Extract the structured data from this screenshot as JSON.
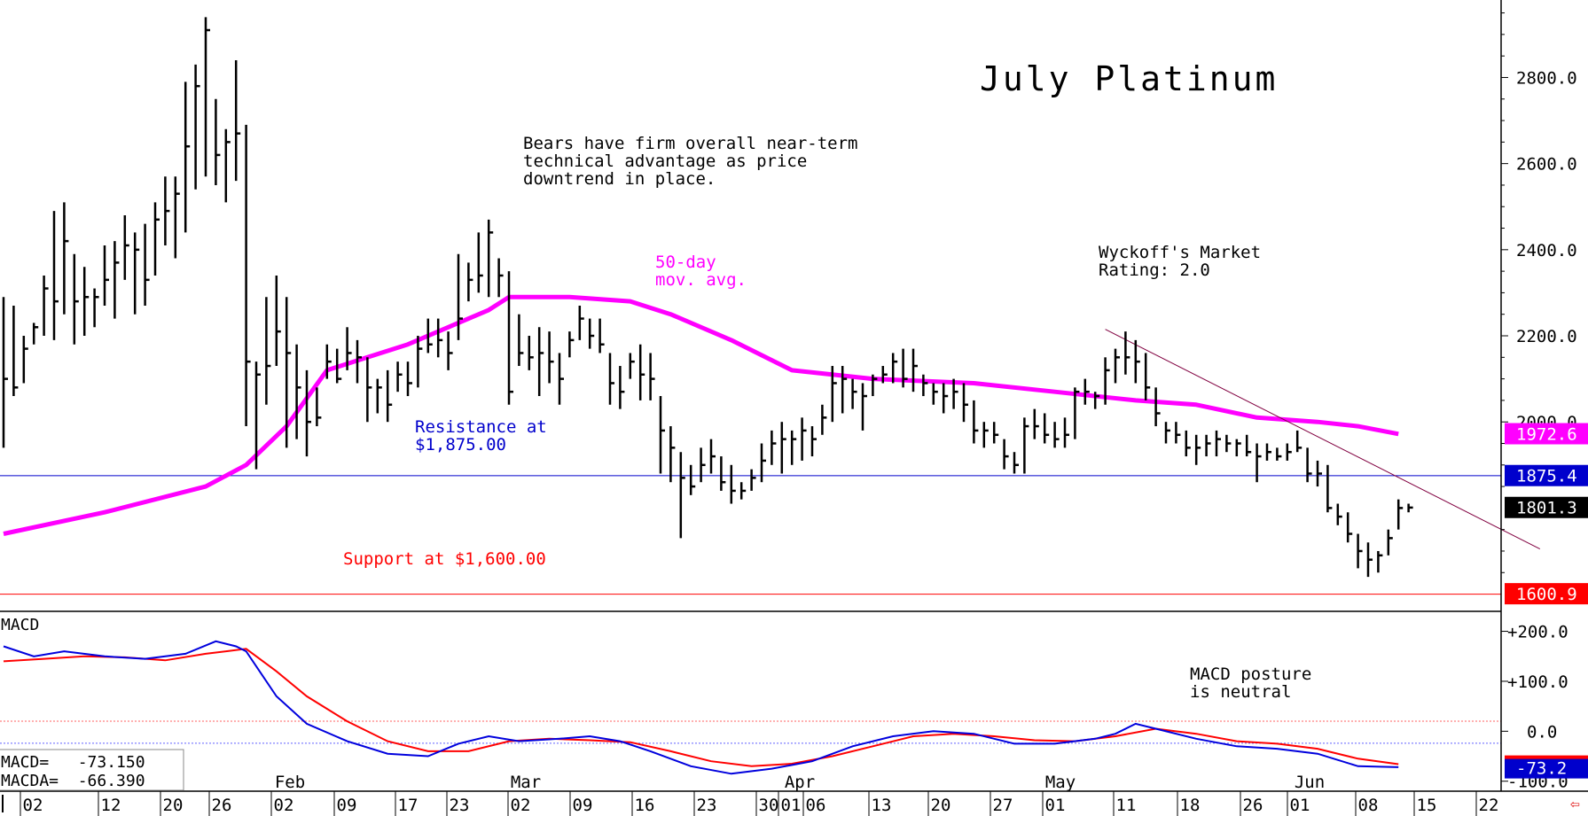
{
  "chart_data": {
    "type": "ohlc",
    "title": "July Platinum",
    "annotations": {
      "commentary": [
        "Bears have firm overall near-term",
        "technical advantage as price",
        "downtrend in place."
      ],
      "ma_label": [
        "50-day",
        "mov. avg."
      ],
      "rating": [
        "Wyckoff's Market",
        "Rating: 2.0"
      ],
      "resistance": [
        "Resistance at",
        "$1,875.00"
      ],
      "support": "Support at $1,600.00",
      "macd_posture": [
        "MACD posture",
        "is neutral"
      ],
      "macd_title": "MACD",
      "macd_value": "MACD=   -73.150",
      "macda_value": "MACDA=  -66.390"
    },
    "price_axis": {
      "min": 1560,
      "max": 2980,
      "ticks": [
        "2800.0",
        "2600.0",
        "2400.0",
        "2200.0",
        "2000.0"
      ],
      "tick_values": [
        2800,
        2600,
        2400,
        2200,
        2000
      ]
    },
    "price_tags": [
      {
        "label": "1972.6",
        "value": 1972.6,
        "color": "#ff00ff"
      },
      {
        "label": "1875.4",
        "value": 1875.4,
        "color": "#0000cc"
      },
      {
        "label": "1801.3",
        "value": 1801.3,
        "color": "#000000"
      },
      {
        "label": "1600.9",
        "value": 1600.9,
        "color": "#ff0000"
      }
    ],
    "levels": {
      "resistance": 1875.0,
      "support": 1600.0
    },
    "macd_axis": {
      "min": -120,
      "max": 240,
      "ticks": [
        "+200.0",
        "+100.0",
        "0.0",
        "-100.0"
      ],
      "tick_values": [
        200,
        100,
        0,
        -100
      ],
      "tag": "-73.2"
    },
    "x_axis": {
      "day_labels": [
        "02",
        "12",
        "20",
        "26",
        "02",
        "09",
        "17",
        "23",
        "02",
        "09",
        "16",
        "23",
        "30",
        "01",
        "06",
        "13",
        "20",
        "27",
        "01",
        "11",
        "18",
        "26",
        "01",
        "08",
        "15",
        "22"
      ],
      "month_labels": [
        "Feb",
        "Mar",
        "Apr",
        "May",
        "Jun"
      ]
    },
    "bars": [
      {
        "h": 2290,
        "l": 1940,
        "c": 2100
      },
      {
        "h": 2270,
        "l": 2060,
        "c": 2080
      },
      {
        "h": 2200,
        "l": 2090,
        "c": 2170
      },
      {
        "h": 2230,
        "l": 2180,
        "c": 2220
      },
      {
        "h": 2340,
        "l": 2200,
        "c": 2310
      },
      {
        "h": 2490,
        "l": 2190,
        "c": 2280
      },
      {
        "h": 2510,
        "l": 2250,
        "c": 2420
      },
      {
        "h": 2390,
        "l": 2180,
        "c": 2280
      },
      {
        "h": 2360,
        "l": 2200,
        "c": 2290
      },
      {
        "h": 2310,
        "l": 2220,
        "c": 2290
      },
      {
        "h": 2410,
        "l": 2270,
        "c": 2330
      },
      {
        "h": 2420,
        "l": 2240,
        "c": 2370
      },
      {
        "h": 2480,
        "l": 2330,
        "c": 2410
      },
      {
        "h": 2440,
        "l": 2250,
        "c": 2400
      },
      {
        "h": 2460,
        "l": 2270,
        "c": 2330
      },
      {
        "h": 2510,
        "l": 2340,
        "c": 2470
      },
      {
        "h": 2570,
        "l": 2410,
        "c": 2490
      },
      {
        "h": 2570,
        "l": 2380,
        "c": 2530
      },
      {
        "h": 2790,
        "l": 2440,
        "c": 2640
      },
      {
        "h": 2830,
        "l": 2540,
        "c": 2780
      },
      {
        "h": 2940,
        "l": 2570,
        "c": 2910
      },
      {
        "h": 2750,
        "l": 2550,
        "c": 2620
      },
      {
        "h": 2680,
        "l": 2510,
        "c": 2650
      },
      {
        "h": 2840,
        "l": 2560,
        "c": 2670
      },
      {
        "h": 2690,
        "l": 1990,
        "c": 2140
      },
      {
        "h": 2140,
        "l": 1890,
        "c": 2110
      },
      {
        "h": 2290,
        "l": 2040,
        "c": 2130
      },
      {
        "h": 2340,
        "l": 2130,
        "c": 2210
      },
      {
        "h": 2290,
        "l": 1940,
        "c": 2160
      },
      {
        "h": 2180,
        "l": 1960,
        "c": 2080
      },
      {
        "h": 2120,
        "l": 1920,
        "c": 2000
      },
      {
        "h": 2080,
        "l": 1990,
        "c": 2010
      },
      {
        "h": 2180,
        "l": 2100,
        "c": 2140
      },
      {
        "h": 2170,
        "l": 2090,
        "c": 2100
      },
      {
        "h": 2220,
        "l": 2120,
        "c": 2160
      },
      {
        "h": 2190,
        "l": 2090,
        "c": 2150
      },
      {
        "h": 2150,
        "l": 2000,
        "c": 2080
      },
      {
        "h": 2100,
        "l": 2020,
        "c": 2080
      },
      {
        "h": 2120,
        "l": 2000,
        "c": 2040
      },
      {
        "h": 2140,
        "l": 2070,
        "c": 2110
      },
      {
        "h": 2140,
        "l": 2060,
        "c": 2090
      },
      {
        "h": 2200,
        "l": 2080,
        "c": 2170
      },
      {
        "h": 2240,
        "l": 2160,
        "c": 2180
      },
      {
        "h": 2240,
        "l": 2150,
        "c": 2190
      },
      {
        "h": 2210,
        "l": 2120,
        "c": 2160
      },
      {
        "h": 2390,
        "l": 2190,
        "c": 2240
      },
      {
        "h": 2370,
        "l": 2280,
        "c": 2330
      },
      {
        "h": 2440,
        "l": 2300,
        "c": 2340
      },
      {
        "h": 2470,
        "l": 2290,
        "c": 2440
      },
      {
        "h": 2380,
        "l": 2290,
        "c": 2340
      },
      {
        "h": 2350,
        "l": 2040,
        "c": 2070
      },
      {
        "h": 2250,
        "l": 2130,
        "c": 2160
      },
      {
        "h": 2200,
        "l": 2120,
        "c": 2150
      },
      {
        "h": 2220,
        "l": 2060,
        "c": 2160
      },
      {
        "h": 2210,
        "l": 2090,
        "c": 2140
      },
      {
        "h": 2160,
        "l": 2040,
        "c": 2100
      },
      {
        "h": 2210,
        "l": 2150,
        "c": 2190
      },
      {
        "h": 2270,
        "l": 2190,
        "c": 2240
      },
      {
        "h": 2240,
        "l": 2170,
        "c": 2200
      },
      {
        "h": 2240,
        "l": 2160,
        "c": 2180
      },
      {
        "h": 2160,
        "l": 2040,
        "c": 2090
      },
      {
        "h": 2130,
        "l": 2030,
        "c": 2070
      },
      {
        "h": 2160,
        "l": 2100,
        "c": 2140
      },
      {
        "h": 2180,
        "l": 2050,
        "c": 2110
      },
      {
        "h": 2160,
        "l": 2050,
        "c": 2100
      },
      {
        "h": 2060,
        "l": 1880,
        "c": 1980
      },
      {
        "h": 1990,
        "l": 1860,
        "c": 1940
      },
      {
        "h": 1930,
        "l": 1730,
        "c": 1870
      },
      {
        "h": 1900,
        "l": 1830,
        "c": 1850
      },
      {
        "h": 1940,
        "l": 1860,
        "c": 1900
      },
      {
        "h": 1960,
        "l": 1880,
        "c": 1920
      },
      {
        "h": 1920,
        "l": 1840,
        "c": 1860
      },
      {
        "h": 1900,
        "l": 1810,
        "c": 1840
      },
      {
        "h": 1860,
        "l": 1820,
        "c": 1840
      },
      {
        "h": 1890,
        "l": 1840,
        "c": 1870
      },
      {
        "h": 1950,
        "l": 1860,
        "c": 1910
      },
      {
        "h": 1980,
        "l": 1900,
        "c": 1950
      },
      {
        "h": 2000,
        "l": 1880,
        "c": 1960
      },
      {
        "h": 1980,
        "l": 1900,
        "c": 1960
      },
      {
        "h": 2010,
        "l": 1910,
        "c": 1980
      },
      {
        "h": 1990,
        "l": 1920,
        "c": 1960
      },
      {
        "h": 2040,
        "l": 1970,
        "c": 2010
      },
      {
        "h": 2130,
        "l": 2000,
        "c": 2090
      },
      {
        "h": 2130,
        "l": 2020,
        "c": 2100
      },
      {
        "h": 2100,
        "l": 2030,
        "c": 2070
      },
      {
        "h": 2090,
        "l": 1980,
        "c": 2060
      },
      {
        "h": 2110,
        "l": 2060,
        "c": 2100
      },
      {
        "h": 2130,
        "l": 2090,
        "c": 2110
      },
      {
        "h": 2160,
        "l": 2090,
        "c": 2140
      },
      {
        "h": 2170,
        "l": 2080,
        "c": 2100
      },
      {
        "h": 2170,
        "l": 2070,
        "c": 2130
      },
      {
        "h": 2110,
        "l": 2060,
        "c": 2090
      },
      {
        "h": 2090,
        "l": 2040,
        "c": 2070
      },
      {
        "h": 2090,
        "l": 2020,
        "c": 2060
      },
      {
        "h": 2100,
        "l": 2030,
        "c": 2070
      },
      {
        "h": 2090,
        "l": 2000,
        "c": 2040
      },
      {
        "h": 2050,
        "l": 1950,
        "c": 1980
      },
      {
        "h": 2000,
        "l": 1940,
        "c": 1980
      },
      {
        "h": 2000,
        "l": 1950,
        "c": 1970
      },
      {
        "h": 1960,
        "l": 1890,
        "c": 1920
      },
      {
        "h": 1930,
        "l": 1880,
        "c": 1900
      },
      {
        "h": 2010,
        "l": 1880,
        "c": 1990
      },
      {
        "h": 2030,
        "l": 1960,
        "c": 1990
      },
      {
        "h": 2020,
        "l": 1950,
        "c": 1970
      },
      {
        "h": 2000,
        "l": 1940,
        "c": 1960
      },
      {
        "h": 2010,
        "l": 1940,
        "c": 1970
      },
      {
        "h": 2080,
        "l": 1960,
        "c": 2070
      },
      {
        "h": 2100,
        "l": 2040,
        "c": 2070
      },
      {
        "h": 2070,
        "l": 2030,
        "c": 2060
      },
      {
        "h": 2150,
        "l": 2040,
        "c": 2120
      },
      {
        "h": 2170,
        "l": 2090,
        "c": 2150
      },
      {
        "h": 2210,
        "l": 2110,
        "c": 2150
      },
      {
        "h": 2190,
        "l": 2090,
        "c": 2140
      },
      {
        "h": 2160,
        "l": 2050,
        "c": 2080
      },
      {
        "h": 2080,
        "l": 1990,
        "c": 2020
      },
      {
        "h": 2000,
        "l": 1950,
        "c": 1980
      },
      {
        "h": 2000,
        "l": 1950,
        "c": 1970
      },
      {
        "h": 1980,
        "l": 1920,
        "c": 1940
      },
      {
        "h": 1970,
        "l": 1900,
        "c": 1940
      },
      {
        "h": 1970,
        "l": 1920,
        "c": 1950
      },
      {
        "h": 1980,
        "l": 1920,
        "c": 1960
      },
      {
        "h": 1970,
        "l": 1930,
        "c": 1950
      },
      {
        "h": 1960,
        "l": 1920,
        "c": 1950
      },
      {
        "h": 1970,
        "l": 1920,
        "c": 1930
      },
      {
        "h": 1950,
        "l": 1860,
        "c": 1920
      },
      {
        "h": 1950,
        "l": 1910,
        "c": 1930
      },
      {
        "h": 1940,
        "l": 1910,
        "c": 1920
      },
      {
        "h": 1950,
        "l": 1910,
        "c": 1930
      },
      {
        "h": 1980,
        "l": 1930,
        "c": 1940
      },
      {
        "h": 1940,
        "l": 1860,
        "c": 1880
      },
      {
        "h": 1910,
        "l": 1850,
        "c": 1880
      },
      {
        "h": 1900,
        "l": 1790,
        "c": 1800
      },
      {
        "h": 1810,
        "l": 1760,
        "c": 1780
      },
      {
        "h": 1790,
        "l": 1720,
        "c": 1740
      },
      {
        "h": 1740,
        "l": 1660,
        "c": 1700
      },
      {
        "h": 1720,
        "l": 1640,
        "c": 1680
      },
      {
        "h": 1700,
        "l": 1650,
        "c": 1690
      },
      {
        "h": 1750,
        "l": 1690,
        "c": 1730
      },
      {
        "h": 1820,
        "l": 1750,
        "c": 1800
      },
      {
        "h": 1810,
        "l": 1790,
        "c": 1801
      }
    ],
    "ma50": [
      [
        0,
        1740
      ],
      [
        10,
        1790
      ],
      [
        20,
        1850
      ],
      [
        24,
        1900
      ],
      [
        28,
        1990
      ],
      [
        32,
        2120
      ],
      [
        36,
        2150
      ],
      [
        40,
        2180
      ],
      [
        44,
        2220
      ],
      [
        48,
        2260
      ],
      [
        50,
        2290
      ],
      [
        56,
        2290
      ],
      [
        62,
        2280
      ],
      [
        66,
        2250
      ],
      [
        72,
        2190
      ],
      [
        78,
        2120
      ],
      [
        86,
        2100
      ],
      [
        96,
        2090
      ],
      [
        104,
        2070
      ],
      [
        112,
        2050
      ],
      [
        118,
        2040
      ],
      [
        124,
        2010
      ],
      [
        130,
        2000
      ],
      [
        134,
        1990
      ],
      [
        138,
        1972
      ]
    ],
    "macd": [
      [
        0,
        170
      ],
      [
        3,
        150
      ],
      [
        6,
        160
      ],
      [
        10,
        150
      ],
      [
        14,
        145
      ],
      [
        18,
        155
      ],
      [
        21,
        180
      ],
      [
        23,
        170
      ],
      [
        24,
        160
      ],
      [
        27,
        70
      ],
      [
        30,
        15
      ],
      [
        34,
        -20
      ],
      [
        38,
        -45
      ],
      [
        42,
        -50
      ],
      [
        45,
        -25
      ],
      [
        48,
        -10
      ],
      [
        51,
        -20
      ],
      [
        55,
        -15
      ],
      [
        58,
        -10
      ],
      [
        61,
        -20
      ],
      [
        64,
        -40
      ],
      [
        68,
        -70
      ],
      [
        72,
        -85
      ],
      [
        76,
        -75
      ],
      [
        80,
        -60
      ],
      [
        84,
        -30
      ],
      [
        88,
        -10
      ],
      [
        92,
        0
      ],
      [
        96,
        -5
      ],
      [
        100,
        -25
      ],
      [
        104,
        -25
      ],
      [
        108,
        -15
      ],
      [
        110,
        -5
      ],
      [
        112,
        15
      ],
      [
        114,
        5
      ],
      [
        118,
        -15
      ],
      [
        122,
        -30
      ],
      [
        126,
        -35
      ],
      [
        130,
        -45
      ],
      [
        134,
        -70
      ],
      [
        138,
        -72
      ]
    ],
    "macda": [
      [
        0,
        140
      ],
      [
        4,
        145
      ],
      [
        8,
        150
      ],
      [
        12,
        148
      ],
      [
        16,
        142
      ],
      [
        20,
        155
      ],
      [
        24,
        165
      ],
      [
        27,
        120
      ],
      [
        30,
        70
      ],
      [
        34,
        20
      ],
      [
        38,
        -20
      ],
      [
        42,
        -40
      ],
      [
        46,
        -40
      ],
      [
        50,
        -20
      ],
      [
        54,
        -15
      ],
      [
        58,
        -18
      ],
      [
        62,
        -22
      ],
      [
        66,
        -40
      ],
      [
        70,
        -60
      ],
      [
        74,
        -70
      ],
      [
        78,
        -65
      ],
      [
        82,
        -50
      ],
      [
        86,
        -30
      ],
      [
        90,
        -10
      ],
      [
        94,
        -5
      ],
      [
        98,
        -10
      ],
      [
        102,
        -18
      ],
      [
        106,
        -20
      ],
      [
        110,
        -10
      ],
      [
        114,
        5
      ],
      [
        118,
        -5
      ],
      [
        122,
        -20
      ],
      [
        126,
        -25
      ],
      [
        130,
        -35
      ],
      [
        134,
        -55
      ],
      [
        138,
        -66
      ]
    ]
  },
  "ui": {
    "back_arrow": "⇦"
  }
}
